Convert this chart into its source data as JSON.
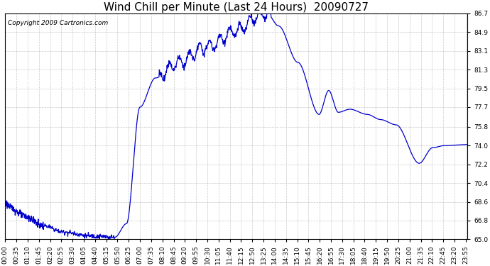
{
  "title": "Wind Chill per Minute (Last 24 Hours)  20090727",
  "copyright_text": "Copyright 2009 Cartronics.com",
  "line_color": "#0000CC",
  "background_color": "#ffffff",
  "grid_color": "#bbbbbb",
  "ylim": [
    65.0,
    86.7
  ],
  "yticks": [
    65.0,
    66.8,
    68.6,
    70.4,
    72.2,
    74.0,
    75.8,
    77.7,
    79.5,
    81.3,
    83.1,
    84.9,
    86.7
  ],
  "xtick_labels": [
    "00:00",
    "00:35",
    "01:10",
    "01:45",
    "02:20",
    "02:55",
    "03:30",
    "04:05",
    "04:40",
    "05:15",
    "05:50",
    "06:25",
    "07:00",
    "07:35",
    "08:10",
    "08:45",
    "09:20",
    "09:55",
    "10:30",
    "11:05",
    "11:40",
    "12:15",
    "12:50",
    "13:25",
    "14:00",
    "14:35",
    "15:10",
    "15:45",
    "16:20",
    "16:55",
    "17:30",
    "18:05",
    "18:40",
    "19:15",
    "19:50",
    "20:25",
    "21:00",
    "21:35",
    "22:10",
    "22:45",
    "23:20",
    "23:55"
  ],
  "title_fontsize": 11,
  "tick_fontsize": 6.5,
  "copyright_fontsize": 6.5,
  "line_width": 0.9
}
